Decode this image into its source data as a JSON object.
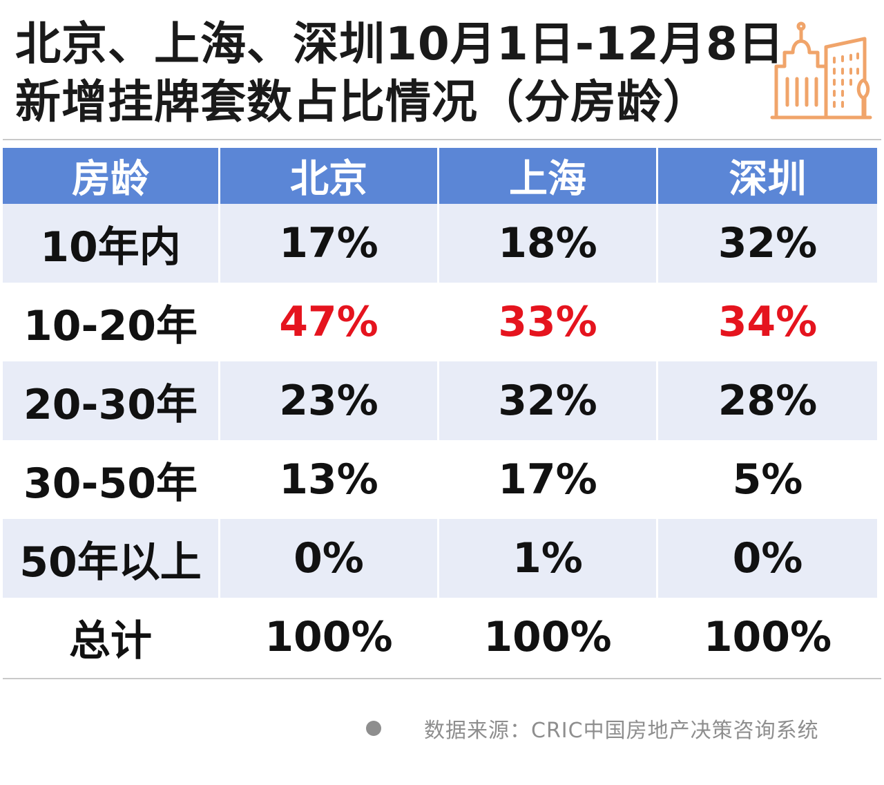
{
  "title": {
    "line1": "北京、上海、深圳10月1日-12月8日",
    "line2": "新增挂牌套数占比情况（分房龄）"
  },
  "logo_icon": "building-icon",
  "table": {
    "headers": [
      "房龄",
      "北京",
      "上海",
      "深圳"
    ],
    "rows": [
      [
        "10年内",
        "17%",
        "18%",
        "32%"
      ],
      [
        "10-20年",
        "47%",
        "33%",
        "34%"
      ],
      [
        "20-30年",
        "23%",
        "32%",
        "28%"
      ],
      [
        "30-50年",
        "13%",
        "17%",
        "5%"
      ],
      [
        "50年以上",
        "0%",
        "1%",
        "0%"
      ],
      [
        "总计",
        "100%",
        "100%",
        "100%"
      ]
    ]
  },
  "source": "数据来源：CRIC中国房地产决策咨询系统",
  "colors": {
    "header_bg": "#5b86d6",
    "row_shade": "#e8ecf7",
    "highlight": "#e5141e",
    "logo": "#f0a46a"
  }
}
